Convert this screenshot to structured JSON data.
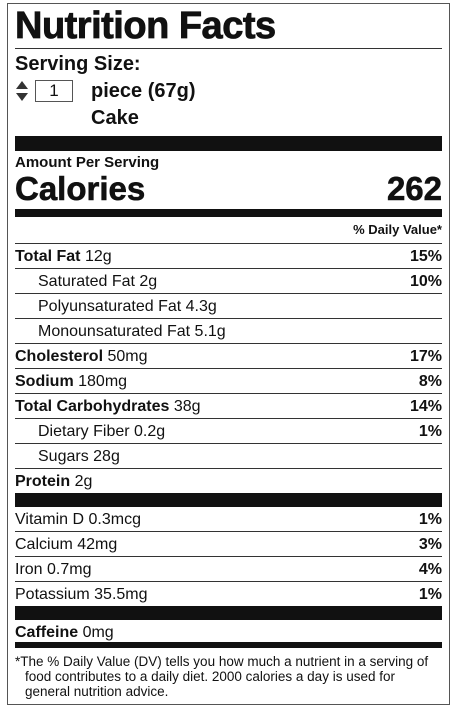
{
  "title": "Nutrition Facts",
  "serving": {
    "label": "Serving Size:",
    "quantity": "1",
    "unit": "piece (67g)",
    "food": "Cake"
  },
  "amount_per_serving": "Amount Per Serving",
  "calories": {
    "label": "Calories",
    "value": "262"
  },
  "dv_header": "% Daily Value*",
  "nutrients": [
    {
      "name": "Total Fat",
      "amount": "12g",
      "dv": "15%",
      "bold": true,
      "indent": false
    },
    {
      "name": "Saturated Fat",
      "amount": "2g",
      "dv": "10%",
      "bold": false,
      "indent": true
    },
    {
      "name": "Polyunsaturated Fat",
      "amount": "4.3g",
      "bold": false,
      "indent": true
    },
    {
      "name": "Monounsaturated Fat",
      "amount": "5.1g",
      "bold": false,
      "indent": true
    },
    {
      "name": "Cholesterol",
      "amount": "50mg",
      "dv": "17%",
      "bold": true,
      "indent": false
    },
    {
      "name": "Sodium",
      "amount": "180mg",
      "dv": "8%",
      "bold": true,
      "indent": false
    },
    {
      "name": "Total Carbohydrates",
      "amount": "38g",
      "dv": "14%",
      "bold": true,
      "indent": false
    },
    {
      "name": "Dietary Fiber",
      "amount": "0.2g",
      "dv": "1%",
      "bold": false,
      "indent": true
    },
    {
      "name": "Sugars",
      "amount": "28g",
      "bold": false,
      "indent": true
    },
    {
      "name": "Protein",
      "amount": "2g",
      "bold": true,
      "indent": false
    }
  ],
  "vitamins": [
    {
      "name": "Vitamin D",
      "amount": "0.3mcg",
      "dv": "1%"
    },
    {
      "name": "Calcium",
      "amount": "42mg",
      "dv": "3%"
    },
    {
      "name": "Iron",
      "amount": "0.7mg",
      "dv": "4%"
    },
    {
      "name": "Potassium",
      "amount": "35.5mg",
      "dv": "1%"
    }
  ],
  "caffeine": {
    "name": "Caffeine",
    "amount": "0mg"
  },
  "footnote": "*The % Daily Value (DV) tells you how much a nutrient in a serving of food contributes to a daily diet. 2000 calories a day is used for general nutrition advice."
}
